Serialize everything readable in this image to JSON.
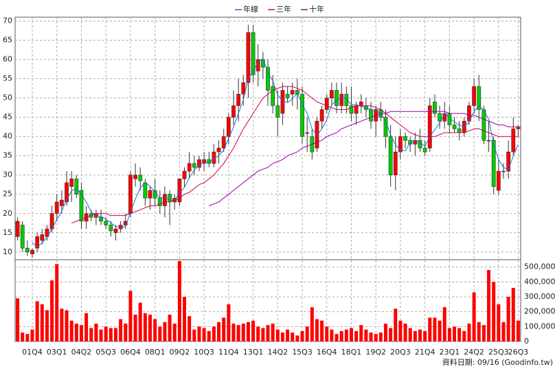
{
  "chart_data": {
    "type": "candlestick",
    "categories": [
      null,
      null,
      null,
      "01Q4",
      null,
      null,
      null,
      null,
      "03Q1",
      null,
      null,
      null,
      null,
      "04Q2",
      null,
      null,
      null,
      null,
      "05Q3",
      null,
      null,
      null,
      null,
      "06Q4",
      null,
      null,
      null,
      null,
      "08Q1",
      null,
      null,
      null,
      null,
      "09Q2",
      null,
      null,
      null,
      null,
      "10Q3",
      null,
      null,
      null,
      null,
      "11Q4",
      null,
      null,
      null,
      null,
      "13Q1",
      null,
      null,
      null,
      null,
      "14Q2",
      null,
      null,
      null,
      null,
      "15Q3",
      null,
      null,
      null,
      null,
      "16Q4",
      null,
      null,
      null,
      null,
      "18Q1",
      null,
      null,
      null,
      null,
      "19Q2",
      null,
      null,
      null,
      null,
      "20Q3",
      null,
      null,
      null,
      null,
      "21Q4",
      null,
      null,
      null,
      null,
      "23Q1",
      null,
      null,
      null,
      null,
      "24Q2",
      null,
      null,
      null,
      null,
      "25Q3",
      null,
      null,
      null,
      "26Q3"
    ],
    "open": [
      14,
      17,
      11,
      9.5,
      11,
      13,
      14,
      16,
      20,
      22,
      23,
      27,
      29,
      26,
      18,
      20,
      19,
      19,
      18,
      17,
      15,
      16,
      17,
      20,
      29,
      30,
      28,
      24,
      26,
      24,
      22,
      25,
      23,
      23,
      29,
      31,
      33,
      32,
      33,
      34,
      33,
      36,
      37,
      40,
      45,
      48,
      51,
      54,
      67,
      57,
      60,
      58,
      53,
      48,
      46,
      51,
      51,
      52,
      51,
      41,
      40,
      37,
      44,
      47,
      50,
      52,
      48,
      51,
      48,
      46,
      48,
      48,
      47,
      44,
      47,
      45,
      40,
      30,
      36,
      40,
      39,
      38,
      39,
      37,
      37,
      49,
      46,
      44,
      46,
      43,
      42,
      41,
      44,
      48,
      53,
      47,
      39,
      39,
      26,
      31,
      31,
      36,
      42
    ],
    "high": [
      19,
      18,
      13,
      11,
      15,
      16,
      17,
      22,
      25,
      26,
      31,
      31,
      30,
      28,
      22,
      21,
      21,
      21,
      19,
      18,
      17,
      18,
      20,
      31,
      33,
      32,
      29,
      27,
      29,
      26,
      27,
      26,
      25,
      29,
      32,
      36,
      35,
      35,
      36,
      36,
      38,
      39,
      42,
      46,
      52,
      55,
      56,
      69,
      69,
      64,
      62,
      60,
      56,
      52,
      54,
      53,
      54,
      55,
      53,
      45,
      42,
      45,
      48,
      51,
      54,
      54,
      54,
      53,
      53,
      49,
      51,
      50,
      49,
      48,
      49,
      47,
      43,
      40,
      42,
      41,
      40,
      41,
      42,
      39,
      50,
      51,
      48,
      49,
      48,
      45,
      44,
      45,
      49,
      55,
      56,
      48,
      44,
      40,
      34,
      33,
      39,
      45,
      43
    ],
    "low": [
      13,
      10,
      9,
      8.5,
      10,
      12,
      13,
      15,
      18,
      20,
      22,
      23,
      24,
      16,
      16,
      18,
      17,
      17,
      16,
      14,
      13,
      15,
      16,
      19,
      27,
      26,
      22,
      21,
      22,
      20,
      19,
      17,
      21,
      22,
      27,
      29,
      30,
      31,
      31,
      32,
      32,
      33,
      36,
      38,
      43,
      44,
      48,
      50,
      54,
      53,
      55,
      48,
      46,
      40,
      43,
      49,
      48,
      47,
      38,
      36,
      34,
      36,
      42,
      46,
      48,
      46,
      46,
      46,
      44,
      43,
      46,
      45,
      42,
      40,
      44,
      37,
      27,
      26,
      34,
      37,
      36,
      35,
      36,
      35,
      36,
      45,
      42,
      42,
      41,
      41,
      39,
      40,
      43,
      46,
      44,
      38,
      36,
      25,
      25,
      29,
      29,
      35,
      40
    ],
    "close": [
      18,
      11,
      10,
      10.5,
      14,
      14.5,
      16,
      20,
      23,
      23.5,
      28,
      29,
      25,
      18,
      20,
      19,
      20,
      18,
      17,
      15.5,
      16,
      17,
      18,
      30,
      30,
      28.5,
      24,
      26,
      24,
      22,
      25,
      23,
      24,
      29,
      31,
      33,
      32,
      34,
      34,
      33,
      36,
      37,
      40,
      45,
      48,
      51,
      54,
      67,
      56,
      60,
      58,
      52,
      48,
      45,
      52,
      50,
      52,
      51,
      40,
      41,
      36,
      44,
      47,
      50,
      52,
      48,
      51,
      48,
      46,
      48,
      49,
      47,
      44,
      47,
      45,
      40,
      30,
      36,
      40,
      39,
      38,
      39,
      37,
      36,
      48,
      46,
      44,
      46,
      43,
      42,
      41,
      44,
      48,
      53,
      47,
      39,
      39,
      27,
      31,
      31,
      36,
      42,
      42.5
    ],
    "volume": [
      290000,
      60000,
      50000,
      80000,
      270000,
      250000,
      210000,
      410000,
      520000,
      220000,
      210000,
      140000,
      120000,
      110000,
      190000,
      90000,
      120000,
      80000,
      100000,
      90000,
      90000,
      150000,
      120000,
      340000,
      180000,
      260000,
      190000,
      180000,
      150000,
      100000,
      130000,
      180000,
      120000,
      540000,
      300000,
      170000,
      80000,
      100000,
      90000,
      70000,
      100000,
      130000,
      160000,
      250000,
      120000,
      110000,
      120000,
      130000,
      140000,
      100000,
      90000,
      110000,
      120000,
      80000,
      60000,
      80000,
      60000,
      40000,
      70000,
      100000,
      230000,
      150000,
      140000,
      100000,
      80000,
      50000,
      70000,
      80000,
      90000,
      70000,
      110000,
      80000,
      60000,
      50000,
      60000,
      120000,
      90000,
      220000,
      140000,
      120000,
      90000,
      70000,
      80000,
      70000,
      160000,
      160000,
      140000,
      230000,
      90000,
      100000,
      90000,
      70000,
      120000,
      330000,
      130000,
      110000,
      480000,
      400000,
      250000,
      130000,
      300000,
      360000,
      140000
    ],
    "up_color": "#ff0000",
    "down_color": "#00cc00",
    "volume_color": "#ff0000",
    "series": [
      {
        "name": "年線",
        "color": "#1f6fd0",
        "values": [
          null,
          null,
          null,
          12.4,
          11.4,
          12.3,
          13.8,
          16.1,
          18.4,
          20.6,
          23.6,
          25.9,
          26.4,
          25,
          23,
          20.5,
          19.3,
          19.3,
          18.5,
          17.6,
          16.6,
          16.4,
          16.6,
          20.3,
          23.8,
          26.6,
          28.1,
          27.1,
          25.6,
          24,
          24.3,
          23.5,
          23.5,
          25.3,
          26.8,
          29.3,
          31.3,
          32.5,
          33.3,
          33.3,
          34.3,
          35,
          36.5,
          39.5,
          42.5,
          46,
          49.5,
          55,
          57,
          59.3,
          60.3,
          56.5,
          54.5,
          50.8,
          49.3,
          48.8,
          49.8,
          51.3,
          48.3,
          46,
          42,
          40.3,
          42,
          44.3,
          48.3,
          49.3,
          50.3,
          49.8,
          48.3,
          48.3,
          47.8,
          47.5,
          47,
          46.8,
          45.8,
          44,
          40.5,
          37.8,
          36.5,
          36.3,
          38.3,
          39,
          38.3,
          37.5,
          40,
          41.8,
          43.5,
          46,
          44.8,
          43.8,
          43,
          42.5,
          43.8,
          46.5,
          48,
          46.8,
          44.5,
          38,
          34,
          32,
          31.3,
          35,
          37.9
        ]
      },
      {
        "name": "三年",
        "color": "#d0004a",
        "values": [
          null,
          null,
          null,
          null,
          null,
          null,
          null,
          null,
          null,
          null,
          null,
          17.5,
          18,
          18.5,
          19,
          19.5,
          20,
          20,
          20,
          19.5,
          19.5,
          19.5,
          19.5,
          20,
          20.5,
          21,
          21.5,
          22,
          22,
          22.5,
          23,
          23,
          23.5,
          24,
          25,
          25.5,
          26.5,
          27.5,
          28,
          29,
          30,
          31.5,
          33,
          35,
          37,
          39.5,
          42,
          44,
          46,
          48,
          50,
          51,
          52,
          52.5,
          53,
          53,
          53,
          52.5,
          52,
          51,
          50,
          49,
          48.5,
          48,
          47.5,
          47,
          47,
          47,
          47.5,
          48,
          48,
          48,
          48,
          47.5,
          47,
          46,
          45,
          44,
          43,
          42,
          41,
          40.5,
          40,
          40,
          40,
          40,
          40.5,
          41,
          41,
          41,
          41,
          41,
          41.5,
          42,
          42,
          41.5,
          41,
          40.5,
          40,
          40,
          40,
          40,
          40
        ]
      },
      {
        "name": "十年",
        "color": "#9900aa",
        "values": [
          null,
          null,
          null,
          null,
          null,
          null,
          null,
          null,
          null,
          null,
          null,
          null,
          null,
          null,
          null,
          null,
          null,
          null,
          null,
          null,
          null,
          null,
          null,
          null,
          null,
          null,
          null,
          null,
          null,
          null,
          null,
          null,
          null,
          null,
          null,
          null,
          null,
          null,
          null,
          22,
          22.5,
          23,
          24,
          25,
          26,
          27,
          28,
          29,
          30,
          31,
          31.5,
          32,
          33,
          33.5,
          34,
          35,
          35.5,
          36,
          37,
          37.5,
          38,
          38.5,
          39,
          40,
          40.5,
          41,
          42,
          42.5,
          43,
          43.5,
          44,
          44.5,
          45,
          45.5,
          46,
          46,
          46.5,
          46.5,
          46.5,
          46.5,
          46.5,
          46.5,
          46.5,
          46.5,
          46.5,
          46.5,
          46.5,
          46.5,
          46,
          46,
          46,
          46,
          45.5,
          45.5,
          45,
          44.5,
          44,
          43.5,
          43,
          43,
          42.5,
          42.5,
          42.5
        ]
      }
    ],
    "ylim": [
      8,
      71
    ],
    "yticks": [
      10,
      15,
      20,
      25,
      30,
      35,
      40,
      45,
      50,
      55,
      60,
      65,
      70
    ],
    "y2lim": [
      0,
      540000
    ],
    "y2ticks": [
      0,
      {
        "value": 100000,
        "label": "100,000"
      },
      {
        "value": 200000,
        "label": "200,000"
      },
      {
        "value": 300000,
        "label": "300,000"
      },
      {
        "value": 400000,
        "label": "400,000"
      },
      {
        "value": 500000,
        "label": "500,000"
      }
    ],
    "grid": true,
    "source": "資料日期: 09/16 (Goodinfo.tw)"
  }
}
